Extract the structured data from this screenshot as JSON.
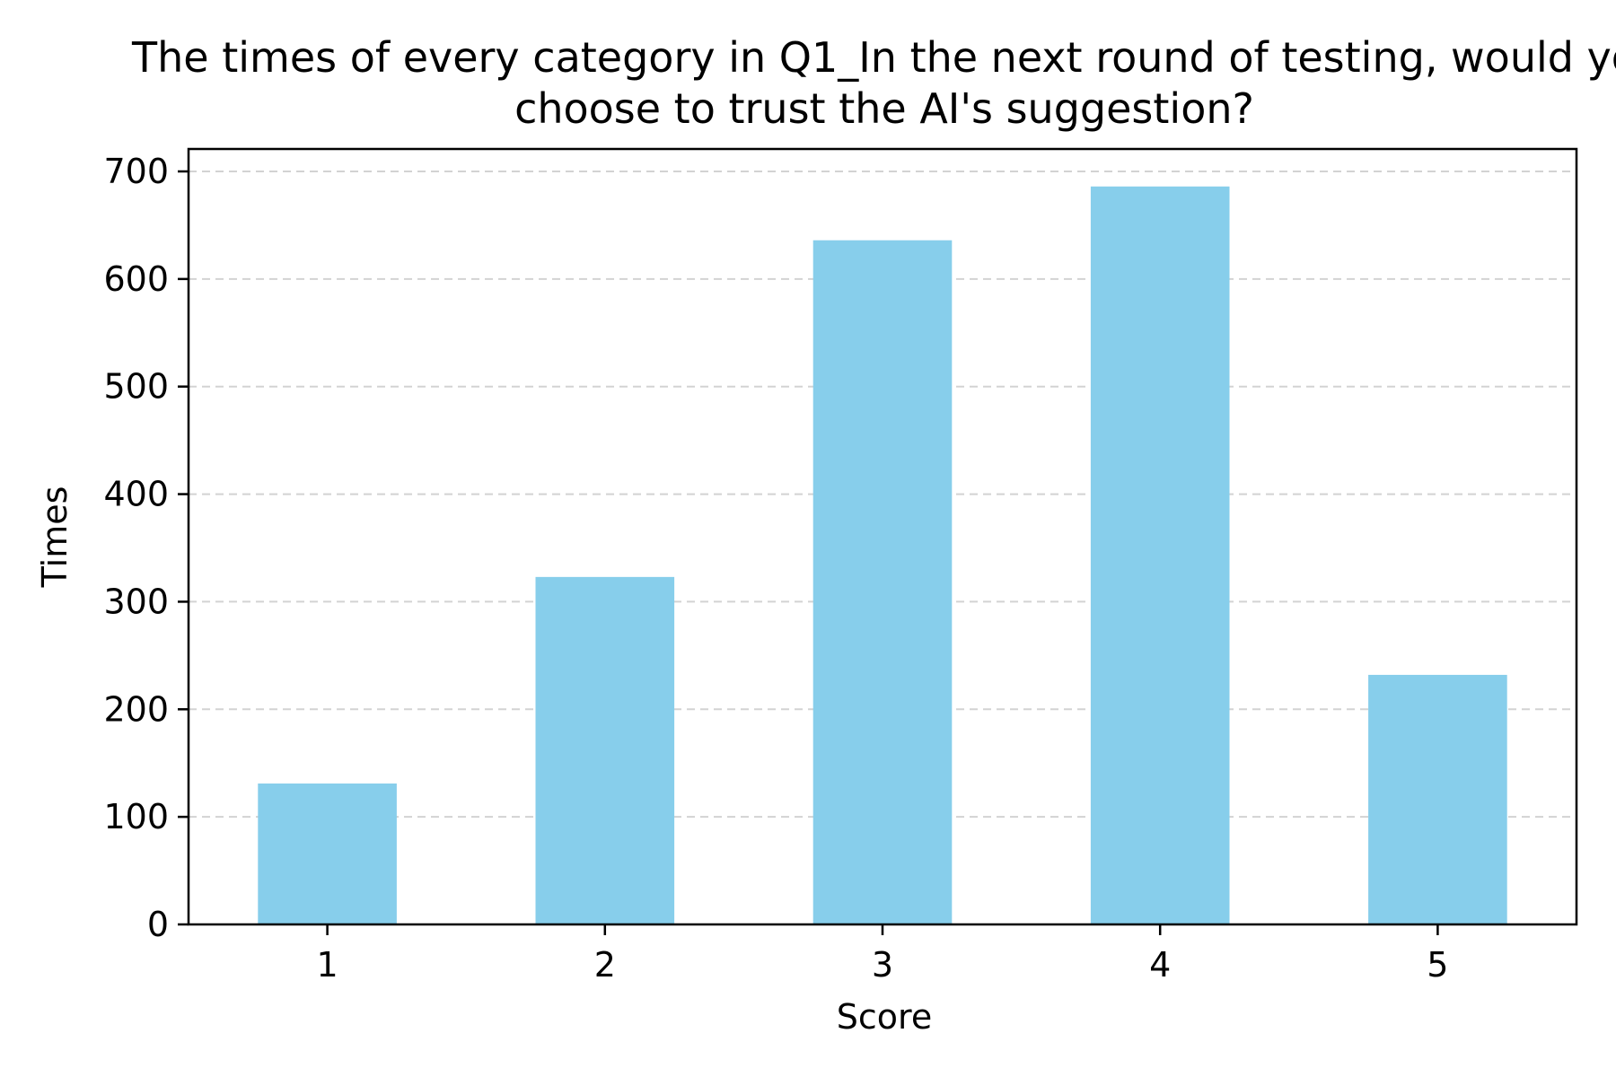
{
  "chart_data": {
    "type": "bar",
    "title_lines": [
      "The times of every category in Q1_In the next round of testing, would yo",
      "choose to trust the AI's suggestion?"
    ],
    "xlabel": "Score",
    "ylabel": "Times",
    "categories": [
      "1",
      "2",
      "3",
      "4",
      "5"
    ],
    "values": [
      131,
      323,
      636,
      686,
      232
    ],
    "ylim": [
      0,
      700
    ],
    "yticks": [
      0,
      100,
      200,
      300,
      400,
      500,
      600,
      700
    ],
    "grid": "horizontal dashed",
    "bar_color": "#87CEEB",
    "grid_color": "#d3d3d3"
  }
}
